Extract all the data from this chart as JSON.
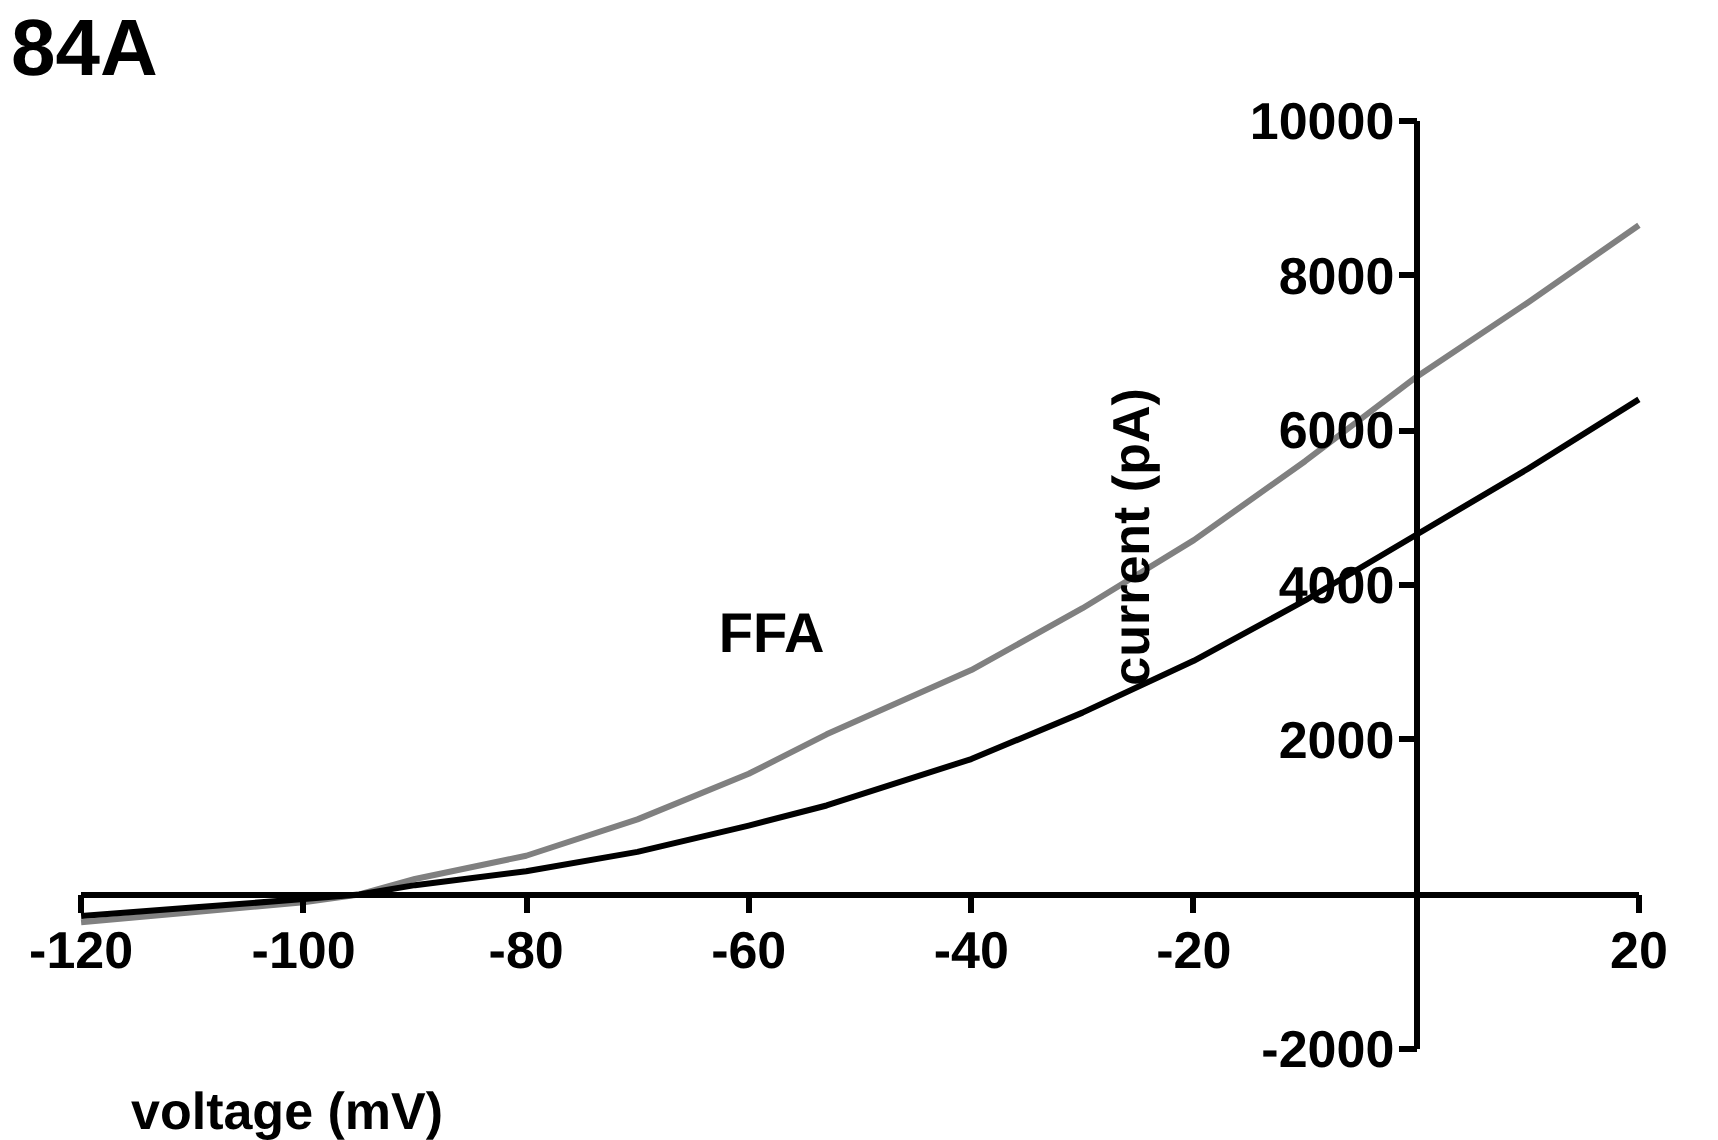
{
  "chart_data": {
    "type": "line",
    "title": "84A",
    "xlabel": "voltage (mV)",
    "ylabel": "current (pA)",
    "x": [
      -120,
      -110,
      -100,
      -95,
      -90,
      -80,
      -70,
      -60,
      -53,
      -40,
      -30,
      -20,
      -10,
      0,
      10,
      20
    ],
    "series": [
      {
        "name": "FFA",
        "color": "#808080",
        "values": [
          -360,
          -230,
          -100,
          0,
          200,
          500,
          970,
          1560,
          2070,
          2900,
          3700,
          4580,
          5600,
          6690,
          7650,
          8650
        ]
      },
      {
        "color": "#000000",
        "values": [
          -280,
          -170,
          -60,
          0,
          120,
          300,
          550,
          890,
          1150,
          1750,
          2350,
          3020,
          3800,
          4650,
          5500,
          6400
        ]
      }
    ],
    "xlim": [
      -120,
      20
    ],
    "ylim": [
      -2000,
      10000
    ],
    "xticks": [
      -120,
      -100,
      -80,
      -60,
      -40,
      -20,
      20
    ],
    "yticks": [
      -2000,
      2000,
      4000,
      6000,
      8000,
      10000
    ],
    "marker": "none",
    "line_style": "solid"
  }
}
